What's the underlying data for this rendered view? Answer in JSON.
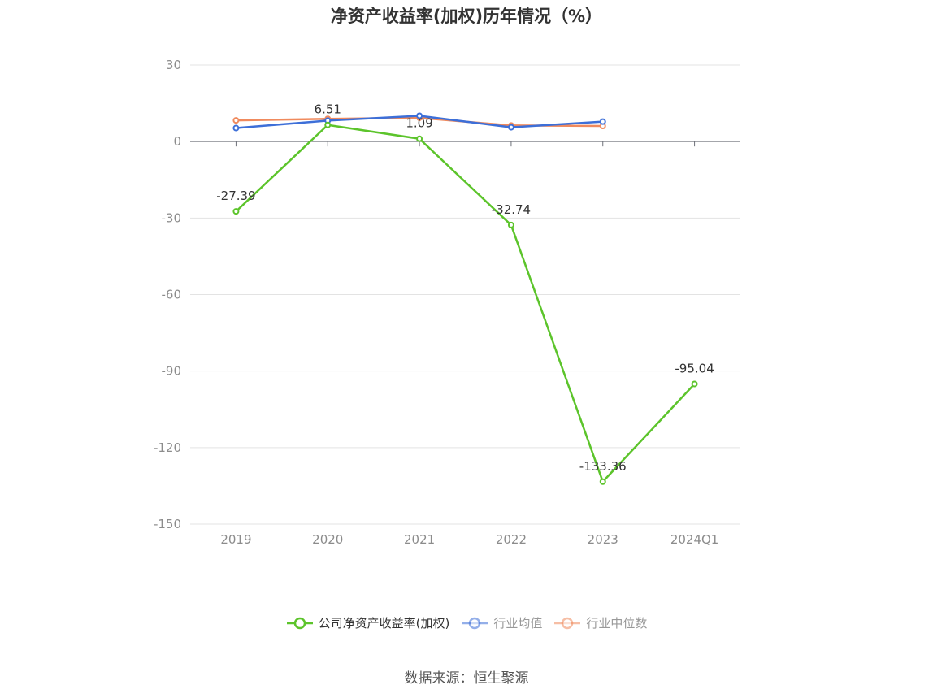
{
  "chart_data": {
    "type": "line",
    "title": "净资产收益率(加权)历年情况（%）",
    "categories": [
      "2019",
      "2020",
      "2021",
      "2022",
      "2023",
      "2024Q1"
    ],
    "ylim": [
      -150,
      30
    ],
    "yticks": [
      30,
      0,
      -30,
      -60,
      -90,
      -120,
      -150
    ],
    "grid": true,
    "legend_position": "bottom",
    "series": [
      {
        "name": "公司净资产收益率(加权)",
        "color": "#5cc42b",
        "values": [
          -27.39,
          6.51,
          1.09,
          -32.74,
          -133.36,
          -95.04
        ],
        "labels": [
          "-27.39",
          "6.51",
          "1.09",
          "-32.74",
          "-133.36",
          "-95.04"
        ]
      },
      {
        "name": "行业均值",
        "color": "#3d6fd8",
        "values": [
          5.3,
          8.2,
          10.1,
          5.6,
          7.8,
          null
        ]
      },
      {
        "name": "行业中位数",
        "color": "#f08a5d",
        "values": [
          8.3,
          8.9,
          9.3,
          6.3,
          6.1,
          null
        ]
      }
    ]
  },
  "source": "数据来源：恒生聚源"
}
